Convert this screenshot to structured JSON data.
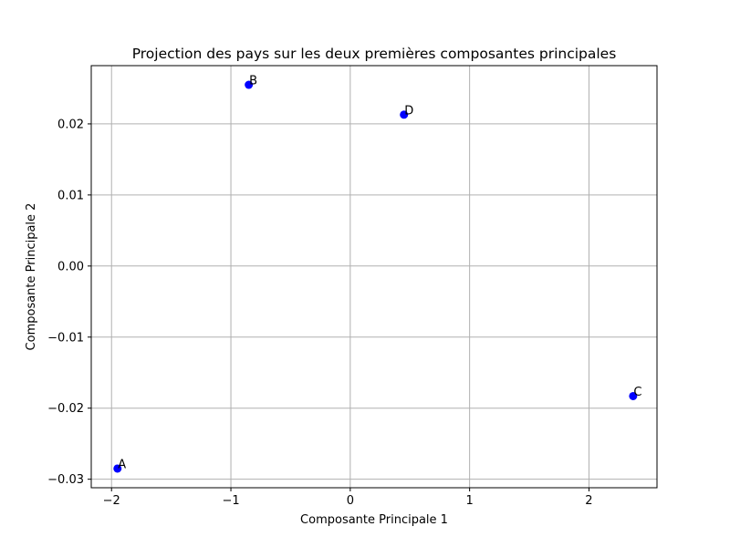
{
  "chart_data": {
    "type": "scatter",
    "title": "Projection des pays sur les deux premières composantes principales",
    "xlabel": "Composante Principale 1",
    "ylabel": "Composante Principale 2",
    "xlim": [
      -2.17,
      2.57
    ],
    "ylim": [
      -0.0312,
      0.0282
    ],
    "xticks": [
      -2,
      -1,
      0,
      1,
      2
    ],
    "xtick_labels": [
      "−2",
      "−1",
      "0",
      "1",
      "2"
    ],
    "yticks": [
      -0.03,
      -0.02,
      -0.01,
      0.0,
      0.01,
      0.02
    ],
    "ytick_labels": [
      "−0.03",
      "−0.02",
      "−0.01",
      "0.00",
      "0.01",
      "0.02"
    ],
    "grid": true,
    "marker_color": "#0000ff",
    "grid_color": "#b0b0b0",
    "points": [
      {
        "label": "A",
        "x": -1.95,
        "y": -0.0285
      },
      {
        "label": "B",
        "x": -0.85,
        "y": 0.0255
      },
      {
        "label": "C",
        "x": 2.37,
        "y": -0.0183
      },
      {
        "label": "D",
        "x": 0.45,
        "y": 0.0213
      }
    ]
  }
}
